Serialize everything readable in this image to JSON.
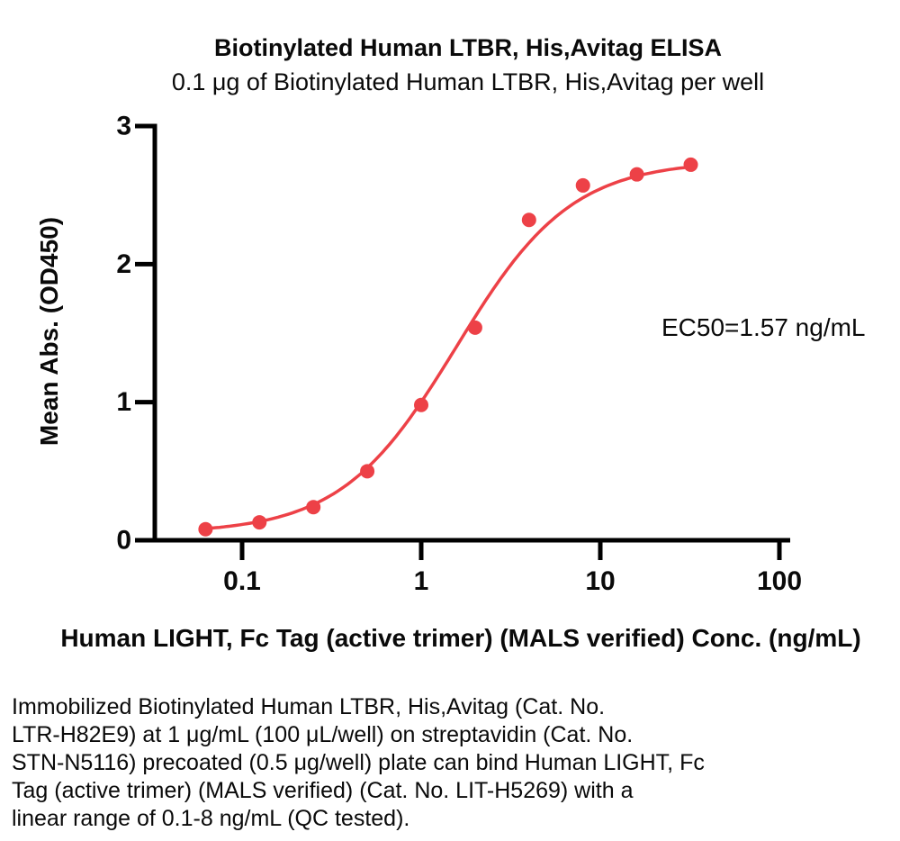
{
  "title": "Biotinylated Human LTBR, His,Avitag ELISA",
  "subtitle": "0.1 μg of Biotinylated Human LTBR, His,Avitag per well",
  "ylabel": "Mean Abs. (OD450)",
  "xlabel": "Human LIGHT, Fc Tag (active trimer) (MALS verified) Conc. (ng/mL)",
  "annotation": "EC50=1.57 ng/mL",
  "description_lines": [
    "Immobilized Biotinylated Human LTBR, His,Avitag (Cat. No.",
    "LTR-H82E9) at 1 μg/mL (100 μL/well) on streptavidin (Cat. No.",
    "STN-N5116) precoated (0.5 μg/well) plate can bind Human LIGHT, Fc",
    "Tag (active trimer) (MALS verified) (Cat. No. LIT-H5269) with a",
    "linear range of 0.1-8 ng/mL (QC tested)."
  ],
  "colors": {
    "series": "#ED4147",
    "axis": "#000000",
    "text": "#0a0a0a",
    "background": "#ffffff"
  },
  "chart_data": {
    "type": "scatter",
    "title": "Biotinylated Human LTBR, His,Avitag ELISA",
    "subtitle": "0.1 μg of Biotinylated Human LTBR, His,Avitag per well",
    "xlabel": "Human LIGHT, Fc Tag (active trimer) (MALS verified) Conc. (ng/mL)",
    "ylabel": "Mean Abs. (OD450)",
    "x_scale": "log10",
    "xlim": [
      0.04,
      130
    ],
    "ylim": [
      0,
      3
    ],
    "grid": false,
    "x": [
      0.0625,
      0.125,
      0.25,
      0.5,
      1,
      2,
      4,
      8,
      16,
      32
    ],
    "y": [
      0.08,
      0.13,
      0.24,
      0.5,
      0.98,
      1.54,
      2.32,
      2.57,
      2.65,
      2.72
    ],
    "x_ticks": [
      0.1,
      1,
      10,
      100
    ],
    "x_tick_labels": [
      "0.1",
      "1",
      "10",
      "100"
    ],
    "y_ticks": [
      0,
      1,
      2,
      3
    ],
    "y_tick_labels": [
      "0",
      "1",
      "2",
      "3"
    ],
    "fit_curve": {
      "model": "4PL",
      "bottom": 0.05,
      "top": 2.75,
      "ec50": 1.57,
      "hill": 1.35
    },
    "ec50_ng_ml": 1.57,
    "annotation": "EC50=1.57 ng/mL",
    "series_name": "Biotinylated Human LTBR, His,Avitag",
    "legend_position": "none"
  }
}
